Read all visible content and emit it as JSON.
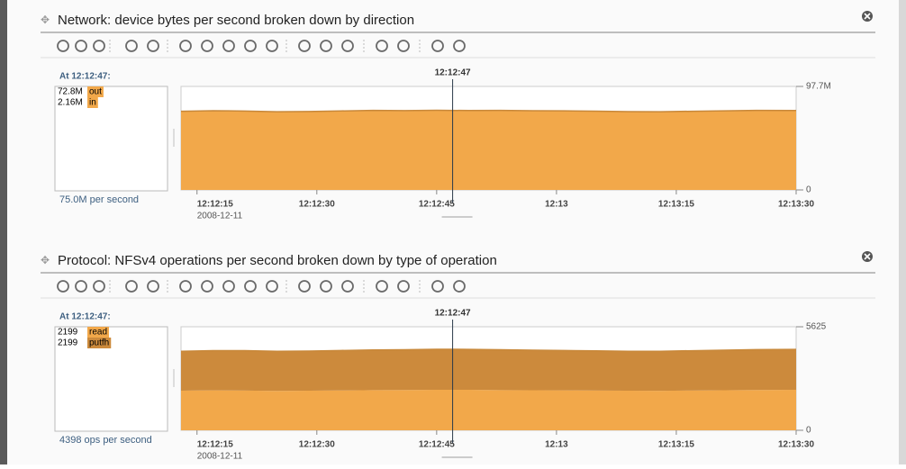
{
  "panels": [
    {
      "title": "Network: device bytes per second broken down by direction",
      "cursor_caption": "At 12:12:47:",
      "legend": [
        {
          "value": "72.8M",
          "name": "out"
        },
        {
          "value": "2.16M",
          "name": "in"
        }
      ],
      "rate": "75.0M per second",
      "chart_data": {
        "type": "area",
        "stacked": true,
        "cursor": {
          "x": 47,
          "label": "12:12:47"
        },
        "x": [
          13,
          17,
          21,
          25,
          29,
          33,
          37,
          41,
          45,
          49,
          53,
          57,
          61,
          65,
          69,
          73,
          77,
          81,
          85,
          90
        ],
        "xlim": [
          13,
          90
        ],
        "xticks": [
          {
            "value": 15,
            "label": "12:12:15"
          },
          {
            "value": 30,
            "label": "12:12:30"
          },
          {
            "value": 45,
            "label": "12:12:45"
          },
          {
            "value": 60,
            "label": "12:13"
          },
          {
            "value": 75,
            "label": "12:13:15"
          },
          {
            "value": 90,
            "label": "12:13:30"
          }
        ],
        "date": "2008-12-11",
        "ylim": [
          0,
          97.7
        ],
        "yticks": [
          {
            "value": 97.7,
            "label": "97.7M"
          },
          0
        ],
        "series": [
          {
            "name": "in",
            "color": "#f2a84a",
            "values": [
              2.16,
              2.16,
              2.16,
              2.16,
              2.16,
              2.16,
              2.16,
              2.16,
              2.16,
              2.16,
              2.16,
              2.16,
              2.16,
              2.16,
              2.16,
              2.16,
              2.16,
              2.16,
              2.16,
              2.16
            ]
          },
          {
            "name": "out",
            "color": "#f2a84a",
            "values": [
              72.1,
              72.6,
              72.3,
              71.6,
              71.9,
              72.4,
              72.9,
              72.7,
              73.0,
              72.8,
              72.9,
              72.6,
              72.5,
              72.2,
              71.7,
              71.6,
              72.1,
              72.5,
              72.9,
              72.8
            ]
          }
        ]
      }
    },
    {
      "title": "Protocol: NFSv4 operations per second broken down by type of operation",
      "cursor_caption": "At 12:12:47:",
      "legend": [
        {
          "value": "2199",
          "name": "read"
        },
        {
          "value": "2199",
          "name": "putfh"
        }
      ],
      "rate": "4398 ops per second",
      "chart_data": {
        "type": "area",
        "stacked": true,
        "cursor": {
          "x": 47,
          "label": "12:12:47"
        },
        "x": [
          13,
          17,
          21,
          25,
          29,
          33,
          37,
          41,
          45,
          49,
          53,
          57,
          61,
          65,
          69,
          73,
          77,
          81,
          85,
          90
        ],
        "xlim": [
          13,
          90
        ],
        "xticks": [
          {
            "value": 15,
            "label": "12:12:15"
          },
          {
            "value": 30,
            "label": "12:12:30"
          },
          {
            "value": 45,
            "label": "12:12:45"
          },
          {
            "value": 60,
            "label": "12:13"
          },
          {
            "value": 75,
            "label": "12:13:15"
          },
          {
            "value": 90,
            "label": "12:13:30"
          }
        ],
        "date": "2008-12-11",
        "ylim": [
          0,
          5625
        ],
        "yticks": [
          {
            "value": 5625,
            "label": "5625"
          },
          0
        ],
        "series": [
          {
            "name": "read",
            "color": "#f2a84a",
            "values": [
              2150,
              2170,
              2160,
              2140,
              2155,
              2165,
              2180,
              2190,
              2200,
              2199,
              2185,
              2175,
              2170,
              2160,
              2150,
              2145,
              2160,
              2175,
              2190,
              2199
            ]
          },
          {
            "name": "putfh",
            "color": "#cc8a3c",
            "values": [
              2140,
              2160,
              2170,
              2150,
              2150,
              2170,
              2185,
              2190,
              2205,
              2199,
              2190,
              2180,
              2165,
              2155,
              2145,
              2150,
              2165,
              2180,
              2195,
              2199
            ]
          }
        ]
      }
    }
  ]
}
